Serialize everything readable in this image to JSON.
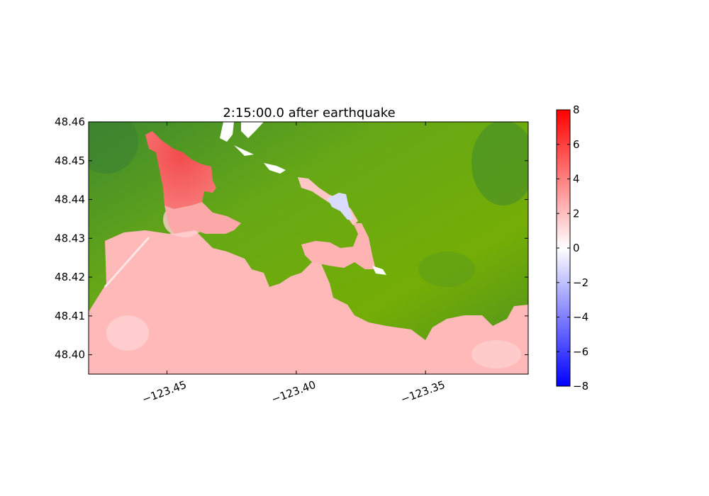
{
  "chart_data": {
    "type": "heatmap",
    "title": "2:15:00.0 after earthquake",
    "xlabel": "",
    "ylabel": "",
    "xlim": [
      -123.4803,
      -123.3103
    ],
    "ylim": [
      48.395,
      48.46
    ],
    "x_ticks": [
      -123.45,
      -123.4,
      -123.35
    ],
    "x_tick_labels": [
      "−123.45",
      "−123.40",
      "−123.35"
    ],
    "y_ticks": [
      48.4,
      48.41,
      48.42,
      48.43,
      48.44,
      48.45,
      48.46
    ],
    "y_tick_labels": [
      "48.40",
      "48.41",
      "48.42",
      "48.43",
      "48.44",
      "48.45",
      "48.46"
    ],
    "colorbar": {
      "range": [
        -8,
        8
      ],
      "ticks": [
        8,
        6,
        4,
        2,
        0,
        -2,
        -4,
        -6,
        -8
      ],
      "tick_labels": [
        "8",
        "6",
        "4",
        "2",
        "0",
        "−2",
        "−4",
        "−6",
        "−8"
      ],
      "colormap": "bwr",
      "colors": {
        "low": "#0000ff",
        "mid": "#ffffff",
        "high": "#ff0000"
      }
    },
    "land_colors": {
      "light": "#77b000",
      "dark": "#3f8a2e"
    },
    "water_surface_level": "approximately 1 to 2 over most of the water, up to about 5 in the inner harbour, slightly negative in the small inlet",
    "grid": false,
    "legend": "none"
  }
}
